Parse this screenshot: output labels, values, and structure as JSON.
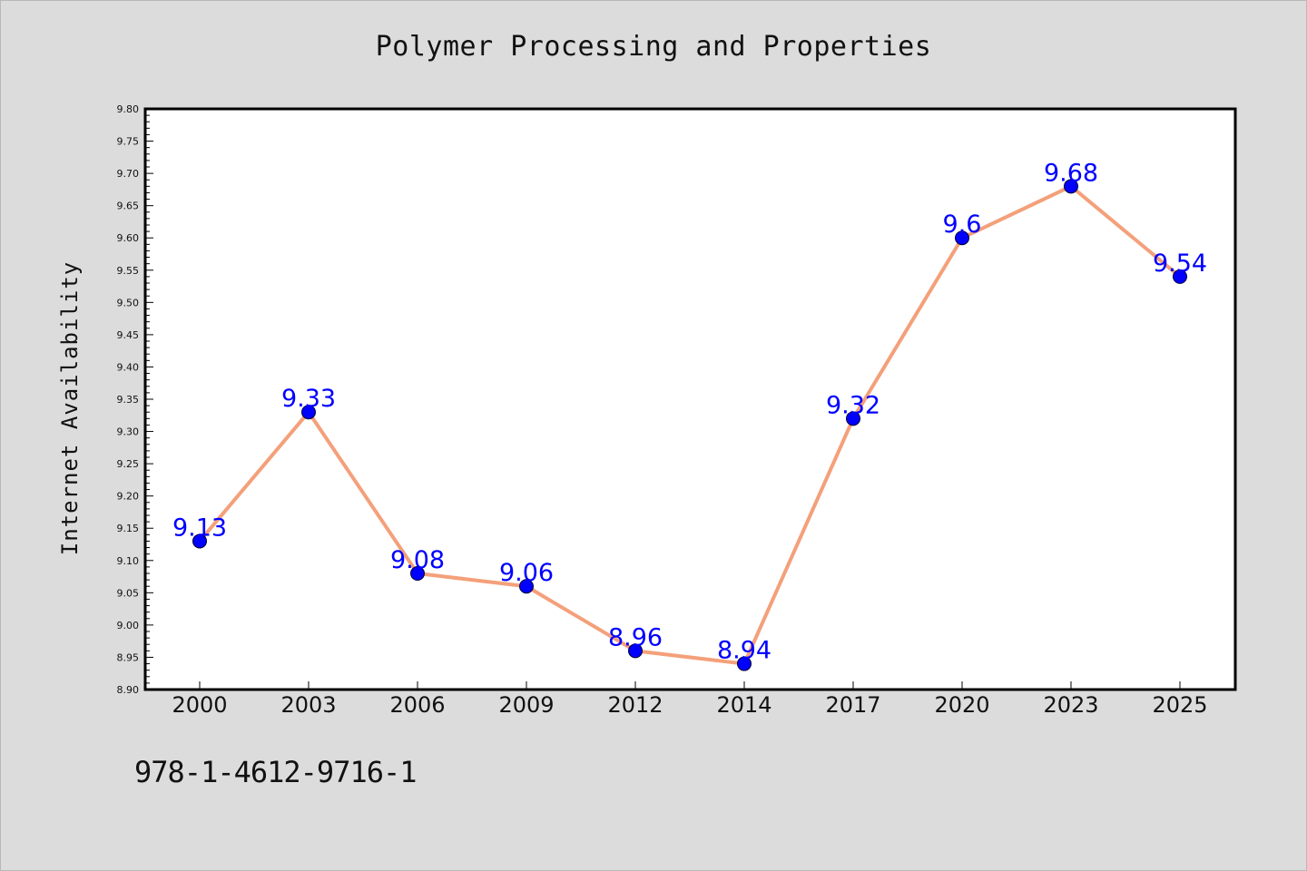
{
  "chart_data": {
    "type": "line",
    "title": "Polymer Processing and Properties",
    "ylabel": "Internet Availability",
    "xlabel": "",
    "categories": [
      "2000",
      "2003",
      "2006",
      "2009",
      "2012",
      "2014",
      "2017",
      "2020",
      "2023",
      "2025"
    ],
    "series": [
      {
        "values": [
          9.13,
          9.33,
          9.08,
          9.06,
          8.96,
          8.94,
          9.32,
          9.6,
          9.68,
          9.54
        ]
      }
    ],
    "data_labels": [
      "9.13",
      "9.33",
      "9.08",
      "9.06",
      "8.96",
      "8.94",
      "9.32",
      "9.6",
      "9.68",
      "9.54"
    ],
    "ylim": [
      8.9,
      9.8
    ],
    "yticks": [
      "8.90",
      "8.95",
      "9.00",
      "9.05",
      "9.10",
      "9.15",
      "9.20",
      "9.25",
      "9.30",
      "9.35",
      "9.40",
      "9.45",
      "9.50",
      "9.55",
      "9.60",
      "9.65",
      "9.70",
      "9.75",
      "9.80"
    ],
    "grid": false,
    "colors": {
      "line": "#f4a07a",
      "marker": "#0000ff",
      "label": "#0000ff",
      "plot_bg": "#ffffff",
      "page_bg": "#dcdcdc"
    }
  },
  "footer": {
    "isbn": "978-1-4612-9716-1"
  }
}
